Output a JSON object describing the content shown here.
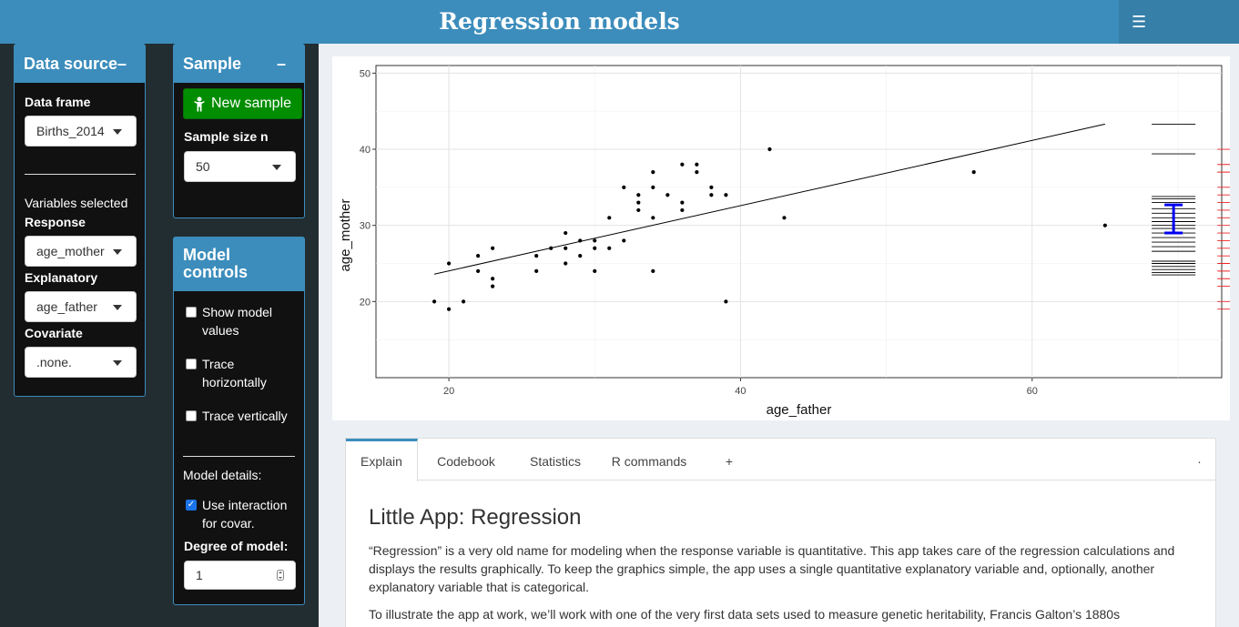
{
  "header": {
    "title": "Regression models",
    "menu_icon": "☰"
  },
  "data_source": {
    "title": "Data source",
    "collapse": "–",
    "data_frame_label": "Data frame",
    "data_frame_value": "Births_2014",
    "variables_selected": "Variables selected",
    "response_label": "Response",
    "response_value": "age_mother",
    "explanatory_label": "Explanatory",
    "explanatory_value": "age_father",
    "covariate_label": "Covariate",
    "covariate_value": ".none."
  },
  "sample": {
    "title": "Sample",
    "collapse": "–",
    "new_sample_label": "New sample",
    "sample_size_label": "Sample size n",
    "sample_size_value": "50"
  },
  "model_controls": {
    "title_line1": "Model",
    "title_line2": "controls",
    "show_model_values": [
      "Show model",
      "values"
    ],
    "trace_horizontally": [
      "Trace",
      "horizontally"
    ],
    "trace_vertically": "Trace vertically",
    "model_details": "Model details:",
    "use_interaction": [
      "Use interaction",
      "for covar."
    ],
    "degree_label": "Degree of model:",
    "degree_value": "1"
  },
  "chart_data": {
    "type": "scatter",
    "xlabel": "age_father",
    "ylabel": "age_mother",
    "xlim": [
      15,
      73
    ],
    "ylim": [
      10,
      51
    ],
    "x_ticks": [
      20,
      40,
      60
    ],
    "y_ticks": [
      20,
      30,
      40,
      50
    ],
    "grid": true,
    "points": [
      [
        19,
        20
      ],
      [
        20,
        19
      ],
      [
        20,
        25
      ],
      [
        21,
        20
      ],
      [
        22,
        26
      ],
      [
        22,
        24
      ],
      [
        23,
        27
      ],
      [
        23,
        23
      ],
      [
        23,
        22
      ],
      [
        26,
        26
      ],
      [
        26,
        24
      ],
      [
        27,
        27
      ],
      [
        28,
        29
      ],
      [
        28,
        27
      ],
      [
        28,
        25
      ],
      [
        29,
        28
      ],
      [
        29,
        26
      ],
      [
        30,
        28
      ],
      [
        30,
        27
      ],
      [
        30,
        24
      ],
      [
        31,
        31
      ],
      [
        31,
        27
      ],
      [
        32,
        35
      ],
      [
        32,
        28
      ],
      [
        33,
        34
      ],
      [
        33,
        33
      ],
      [
        33,
        32
      ],
      [
        34,
        37
      ],
      [
        34,
        35
      ],
      [
        34,
        31
      ],
      [
        34,
        24
      ],
      [
        35,
        34
      ],
      [
        36,
        38
      ],
      [
        36,
        33
      ],
      [
        36,
        32
      ],
      [
        37,
        38
      ],
      [
        37,
        37
      ],
      [
        38,
        35
      ],
      [
        38,
        34
      ],
      [
        39,
        34
      ],
      [
        39,
        20
      ],
      [
        42,
        40
      ],
      [
        43,
        31
      ],
      [
        56,
        37
      ],
      [
        65,
        30
      ]
    ],
    "fit_line": {
      "x": [
        19,
        65
      ],
      "y": [
        23.6,
        43.3
      ]
    },
    "fitted_ticks": {
      "x_range": [
        68.2,
        71.2
      ],
      "color": "#000000",
      "values": [
        43.3,
        39.4,
        33.8,
        33.5,
        33.0,
        32.2,
        31.6,
        31.0,
        30.5,
        30.0,
        29.6,
        29.0,
        28.4,
        27.8,
        27.2,
        26.6,
        25.3,
        25.0,
        24.6,
        24.2,
        23.8,
        23.5
      ],
      "interval": {
        "low": 29.0,
        "high": 32.7,
        "color": "#0000ee"
      }
    },
    "response_ticks": {
      "x_range": [
        72.7,
        75.7
      ],
      "color": "#ee2222",
      "values": [
        40,
        38,
        37,
        35,
        34,
        33,
        32,
        31,
        30,
        29,
        28,
        27,
        26,
        25,
        24,
        23,
        22,
        20,
        19
      ],
      "interval": {
        "low": 29.0,
        "high": 34.7,
        "color": "#000000"
      }
    }
  },
  "tabs": {
    "items": [
      "Explain",
      "Codebook",
      "Statistics",
      "R commands",
      "+"
    ],
    "more": "·"
  },
  "explain": {
    "title": "Little App: Regression",
    "para1_line1": "“Regression” is a very old name for modeling when the response variable is quantitative. This app takes care of the regression calculations and",
    "para1_line2": "displays the results graphically. To keep the graphics simple, the app uses a single quantitative explanatory variable and, optionally, another",
    "para1_line3": "explanatory variable that is categorical.",
    "para2_line1": "To illustrate the app at work, we’ll work with one of the very first data sets used to measure genetic heritability, Francis Galton’s 1880s"
  }
}
